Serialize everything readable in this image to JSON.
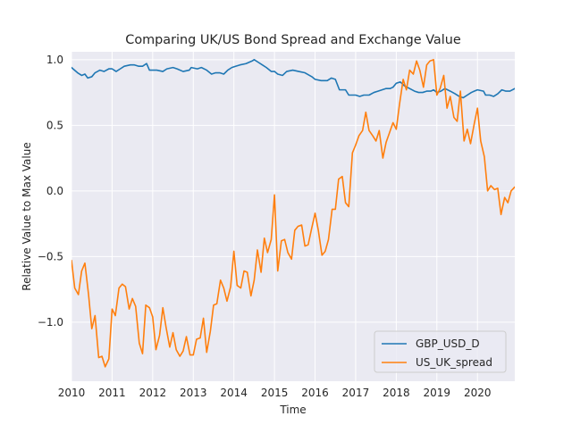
{
  "chart_data": {
    "type": "line",
    "title": "Comparing UK/US Bond Spread and Exchange Value",
    "xlabel": "Time",
    "ylabel": "Relative Value to Max Value",
    "xlim": [
      2010.0,
      2020.92
    ],
    "ylim": [
      -1.45,
      1.06
    ],
    "grid": true,
    "legend_position": "lower right",
    "x_ticks": [
      2010,
      2011,
      2012,
      2013,
      2014,
      2015,
      2016,
      2017,
      2018,
      2019,
      2020
    ],
    "x_tick_labels": [
      "2010",
      "2011",
      "2012",
      "2013",
      "2014",
      "2015",
      "2016",
      "2017",
      "2018",
      "2019",
      "2020"
    ],
    "y_ticks": [
      -1.0,
      -0.5,
      0.0,
      0.5,
      1.0
    ],
    "y_tick_labels": [
      "−1.0",
      "−0.5",
      "0.0",
      "0.5",
      "1.0"
    ],
    "series": [
      {
        "name": "GBP_USD_D",
        "color": "#1f77b4",
        "points": [
          [
            2010.0,
            0.94
          ],
          [
            2010.15,
            0.9
          ],
          [
            2010.25,
            0.88
          ],
          [
            2010.33,
            0.89
          ],
          [
            2010.4,
            0.86
          ],
          [
            2010.5,
            0.87
          ],
          [
            2010.58,
            0.9
          ],
          [
            2010.7,
            0.92
          ],
          [
            2010.8,
            0.91
          ],
          [
            2010.92,
            0.93
          ],
          [
            2011.0,
            0.93
          ],
          [
            2011.1,
            0.91
          ],
          [
            2011.2,
            0.93
          ],
          [
            2011.3,
            0.95
          ],
          [
            2011.45,
            0.96
          ],
          [
            2011.55,
            0.96
          ],
          [
            2011.65,
            0.95
          ],
          [
            2011.75,
            0.95
          ],
          [
            2011.85,
            0.97
          ],
          [
            2011.92,
            0.92
          ],
          [
            2012.0,
            0.92
          ],
          [
            2012.1,
            0.92
          ],
          [
            2012.25,
            0.91
          ],
          [
            2012.35,
            0.93
          ],
          [
            2012.5,
            0.94
          ],
          [
            2012.6,
            0.93
          ],
          [
            2012.75,
            0.91
          ],
          [
            2012.9,
            0.92
          ],
          [
            2012.95,
            0.94
          ],
          [
            2013.1,
            0.93
          ],
          [
            2013.2,
            0.94
          ],
          [
            2013.33,
            0.92
          ],
          [
            2013.45,
            0.89
          ],
          [
            2013.55,
            0.9
          ],
          [
            2013.65,
            0.9
          ],
          [
            2013.75,
            0.89
          ],
          [
            2013.85,
            0.92
          ],
          [
            2013.95,
            0.94
          ],
          [
            2014.05,
            0.95
          ],
          [
            2014.15,
            0.96
          ],
          [
            2014.3,
            0.97
          ],
          [
            2014.45,
            0.99
          ],
          [
            2014.5,
            1.0
          ],
          [
            2014.6,
            0.98
          ],
          [
            2014.7,
            0.96
          ],
          [
            2014.8,
            0.94
          ],
          [
            2014.92,
            0.91
          ],
          [
            2015.0,
            0.91
          ],
          [
            2015.08,
            0.89
          ],
          [
            2015.2,
            0.88
          ],
          [
            2015.3,
            0.91
          ],
          [
            2015.45,
            0.92
          ],
          [
            2015.6,
            0.91
          ],
          [
            2015.75,
            0.9
          ],
          [
            2015.92,
            0.87
          ],
          [
            2016.0,
            0.85
          ],
          [
            2016.15,
            0.84
          ],
          [
            2016.3,
            0.84
          ],
          [
            2016.4,
            0.86
          ],
          [
            2016.5,
            0.85
          ],
          [
            2016.55,
            0.81
          ],
          [
            2016.6,
            0.77
          ],
          [
            2016.75,
            0.77
          ],
          [
            2016.83,
            0.73
          ],
          [
            2016.92,
            0.73
          ],
          [
            2017.0,
            0.73
          ],
          [
            2017.1,
            0.72
          ],
          [
            2017.2,
            0.73
          ],
          [
            2017.33,
            0.73
          ],
          [
            2017.45,
            0.75
          ],
          [
            2017.55,
            0.76
          ],
          [
            2017.65,
            0.77
          ],
          [
            2017.75,
            0.78
          ],
          [
            2017.85,
            0.78
          ],
          [
            2017.92,
            0.79
          ],
          [
            2018.0,
            0.82
          ],
          [
            2018.1,
            0.83
          ],
          [
            2018.2,
            0.8
          ],
          [
            2018.33,
            0.78
          ],
          [
            2018.45,
            0.76
          ],
          [
            2018.55,
            0.75
          ],
          [
            2018.65,
            0.75
          ],
          [
            2018.75,
            0.76
          ],
          [
            2018.85,
            0.76
          ],
          [
            2018.92,
            0.77
          ],
          [
            2019.0,
            0.75
          ],
          [
            2019.1,
            0.76
          ],
          [
            2019.2,
            0.78
          ],
          [
            2019.33,
            0.76
          ],
          [
            2019.45,
            0.74
          ],
          [
            2019.55,
            0.72
          ],
          [
            2019.65,
            0.71
          ],
          [
            2019.75,
            0.73
          ],
          [
            2019.85,
            0.75
          ],
          [
            2019.92,
            0.76
          ],
          [
            2020.0,
            0.77
          ],
          [
            2020.15,
            0.76
          ],
          [
            2020.2,
            0.73
          ],
          [
            2020.3,
            0.73
          ],
          [
            2020.4,
            0.72
          ],
          [
            2020.5,
            0.74
          ],
          [
            2020.6,
            0.77
          ],
          [
            2020.7,
            0.76
          ],
          [
            2020.8,
            0.76
          ],
          [
            2020.92,
            0.78
          ]
        ]
      },
      {
        "name": "US_UK_spread",
        "color": "#ff7f0e",
        "points": [
          [
            2010.0,
            -0.53
          ],
          [
            2010.08,
            -0.74
          ],
          [
            2010.17,
            -0.79
          ],
          [
            2010.25,
            -0.61
          ],
          [
            2010.33,
            -0.55
          ],
          [
            2010.42,
            -0.79
          ],
          [
            2010.5,
            -1.05
          ],
          [
            2010.58,
            -0.95
          ],
          [
            2010.67,
            -1.27
          ],
          [
            2010.75,
            -1.26
          ],
          [
            2010.83,
            -1.34
          ],
          [
            2010.92,
            -1.28
          ],
          [
            2011.0,
            -0.9
          ],
          [
            2011.08,
            -0.95
          ],
          [
            2011.17,
            -0.74
          ],
          [
            2011.25,
            -0.71
          ],
          [
            2011.33,
            -0.73
          ],
          [
            2011.42,
            -0.9
          ],
          [
            2011.5,
            -0.82
          ],
          [
            2011.58,
            -0.88
          ],
          [
            2011.67,
            -1.16
          ],
          [
            2011.75,
            -1.24
          ],
          [
            2011.83,
            -0.87
          ],
          [
            2011.92,
            -0.89
          ],
          [
            2012.0,
            -0.96
          ],
          [
            2012.08,
            -1.21
          ],
          [
            2012.17,
            -1.1
          ],
          [
            2012.25,
            -0.89
          ],
          [
            2012.33,
            -1.04
          ],
          [
            2012.42,
            -1.19
          ],
          [
            2012.5,
            -1.08
          ],
          [
            2012.58,
            -1.21
          ],
          [
            2012.67,
            -1.26
          ],
          [
            2012.75,
            -1.22
          ],
          [
            2012.83,
            -1.11
          ],
          [
            2012.92,
            -1.25
          ],
          [
            2013.0,
            -1.25
          ],
          [
            2013.08,
            -1.13
          ],
          [
            2013.17,
            -1.12
          ],
          [
            2013.25,
            -0.97
          ],
          [
            2013.33,
            -1.23
          ],
          [
            2013.42,
            -1.07
          ],
          [
            2013.5,
            -0.87
          ],
          [
            2013.58,
            -0.86
          ],
          [
            2013.67,
            -0.68
          ],
          [
            2013.75,
            -0.74
          ],
          [
            2013.83,
            -0.84
          ],
          [
            2013.92,
            -0.73
          ],
          [
            2014.0,
            -0.46
          ],
          [
            2014.08,
            -0.72
          ],
          [
            2014.17,
            -0.74
          ],
          [
            2014.25,
            -0.61
          ],
          [
            2014.33,
            -0.62
          ],
          [
            2014.42,
            -0.8
          ],
          [
            2014.5,
            -0.68
          ],
          [
            2014.58,
            -0.45
          ],
          [
            2014.67,
            -0.62
          ],
          [
            2014.75,
            -0.36
          ],
          [
            2014.83,
            -0.47
          ],
          [
            2014.92,
            -0.37
          ],
          [
            2015.0,
            -0.03
          ],
          [
            2015.08,
            -0.61
          ],
          [
            2015.17,
            -0.38
          ],
          [
            2015.25,
            -0.37
          ],
          [
            2015.33,
            -0.47
          ],
          [
            2015.42,
            -0.52
          ],
          [
            2015.5,
            -0.3
          ],
          [
            2015.58,
            -0.27
          ],
          [
            2015.67,
            -0.26
          ],
          [
            2015.75,
            -0.42
          ],
          [
            2015.83,
            -0.41
          ],
          [
            2015.92,
            -0.28
          ],
          [
            2016.0,
            -0.17
          ],
          [
            2016.08,
            -0.3
          ],
          [
            2016.17,
            -0.49
          ],
          [
            2016.25,
            -0.46
          ],
          [
            2016.33,
            -0.37
          ],
          [
            2016.42,
            -0.14
          ],
          [
            2016.5,
            -0.14
          ],
          [
            2016.58,
            0.09
          ],
          [
            2016.67,
            0.11
          ],
          [
            2016.75,
            -0.09
          ],
          [
            2016.83,
            -0.12
          ],
          [
            2016.92,
            0.29
          ],
          [
            2017.0,
            0.35
          ],
          [
            2017.08,
            0.42
          ],
          [
            2017.17,
            0.46
          ],
          [
            2017.25,
            0.6
          ],
          [
            2017.33,
            0.46
          ],
          [
            2017.42,
            0.42
          ],
          [
            2017.5,
            0.38
          ],
          [
            2017.58,
            0.46
          ],
          [
            2017.67,
            0.25
          ],
          [
            2017.75,
            0.37
          ],
          [
            2017.83,
            0.44
          ],
          [
            2017.92,
            0.52
          ],
          [
            2018.0,
            0.47
          ],
          [
            2018.08,
            0.66
          ],
          [
            2018.17,
            0.85
          ],
          [
            2018.25,
            0.77
          ],
          [
            2018.33,
            0.92
          ],
          [
            2018.42,
            0.89
          ],
          [
            2018.5,
            0.99
          ],
          [
            2018.58,
            0.92
          ],
          [
            2018.67,
            0.79
          ],
          [
            2018.75,
            0.96
          ],
          [
            2018.83,
            0.99
          ],
          [
            2018.92,
            1.0
          ],
          [
            2019.0,
            0.73
          ],
          [
            2019.08,
            0.78
          ],
          [
            2019.17,
            0.88
          ],
          [
            2019.25,
            0.63
          ],
          [
            2019.33,
            0.72
          ],
          [
            2019.42,
            0.56
          ],
          [
            2019.5,
            0.53
          ],
          [
            2019.58,
            0.76
          ],
          [
            2019.67,
            0.38
          ],
          [
            2019.75,
            0.47
          ],
          [
            2019.83,
            0.36
          ],
          [
            2019.92,
            0.51
          ],
          [
            2020.0,
            0.63
          ],
          [
            2020.08,
            0.38
          ],
          [
            2020.17,
            0.26
          ],
          [
            2020.25,
            0.0
          ],
          [
            2020.33,
            0.04
          ],
          [
            2020.42,
            0.01
          ],
          [
            2020.5,
            0.02
          ],
          [
            2020.58,
            -0.18
          ],
          [
            2020.67,
            -0.05
          ],
          [
            2020.75,
            -0.09
          ],
          [
            2020.83,
            0.0
          ],
          [
            2020.92,
            0.03
          ]
        ]
      }
    ]
  }
}
